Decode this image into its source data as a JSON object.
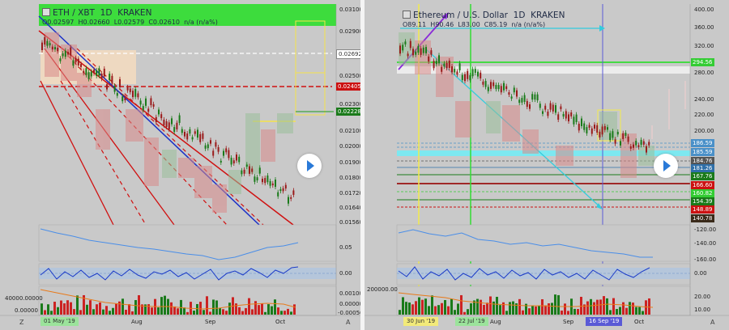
{
  "left": {
    "symbol": "ETH / XBT",
    "interval": "1D",
    "exchange": "KRAKEN",
    "ohlc": {
      "o": "O0.02597",
      "h": "H0.02660",
      "l": "L0.02579",
      "c": "C0.02610",
      "chg": "n/a (n/a%)"
    },
    "price_ticks": [
      "0.03100",
      "0.02900",
      "0.02500",
      "0.02300",
      "0.02100",
      "0.02000",
      "0.01900",
      "0.01800",
      "0.01720",
      "0.01640",
      "0.01560"
    ],
    "price_labels": [
      {
        "text": "0.02692",
        "bg": "#ffffff",
        "fg": "#333333"
      },
      {
        "text": "0.02405",
        "bg": "#cc1111",
        "fg": "#ffffff"
      },
      {
        "text": "0.02228",
        "bg": "#1a7a1a",
        "fg": "#ffffff"
      }
    ],
    "osc1_ticks": [
      "0.05"
    ],
    "osc2_ticks": [
      "0.00"
    ],
    "vol_ticks": [
      "40000.00000",
      "0.00000"
    ],
    "vol_right_ticks": [
      "0.00100",
      "0.00000",
      "-0.00050"
    ],
    "x_labels": [
      "Aug",
      "Sep",
      "Oct"
    ],
    "x_badge": "01 May '19",
    "corner_left": "Z",
    "corner_right": "A"
  },
  "right": {
    "symbol": "Ethereum / U.S. Dollar",
    "interval": "1D",
    "exchange": "KRAKEN",
    "ohlc": {
      "o": "O89.11",
      "h": "H90.46",
      "l": "L83.00",
      "c": "C85.19",
      "chg": "n/a (n/a%)"
    },
    "price_ticks": [
      "400.00",
      "360.00",
      "320.00",
      "280.00",
      "240.00",
      "220.00",
      "200.00",
      "140.00"
    ],
    "price_labels": [
      {
        "text": "294.56",
        "bg": "#33cc33",
        "fg": "#ffffff"
      },
      {
        "text": "186.59",
        "bg": "#4a90c8",
        "fg": "#ffffff"
      },
      {
        "text": "185.59",
        "bg": "#4a90c8",
        "fg": "#ffffff"
      },
      {
        "text": "184.76",
        "bg": "#555555",
        "fg": "#ffffff"
      },
      {
        "text": "181.26",
        "bg": "#2f6fa8",
        "fg": "#ffffff"
      },
      {
        "text": "167.76",
        "bg": "#1a7a1a",
        "fg": "#ffffff"
      },
      {
        "text": "166.60",
        "bg": "#cc1111",
        "fg": "#ffffff"
      },
      {
        "text": "160.82",
        "bg": "#33cc33",
        "fg": "#ffffff"
      },
      {
        "text": "154.39",
        "bg": "#1a7a1a",
        "fg": "#ffffff"
      },
      {
        "text": "148.89",
        "bg": "#cc1111",
        "fg": "#ffffff"
      },
      {
        "text": "140.78",
        "bg": "#3a2a1a",
        "fg": "#ffffff"
      }
    ],
    "osc1_ticks": [
      "-120.00",
      "-140.00",
      "-160.00"
    ],
    "osc2_ticks": [
      "0.00"
    ],
    "vol_ticks": [
      "200000.00"
    ],
    "vol_right_ticks": [
      "20.00",
      "10.00"
    ],
    "x_labels": [
      "Aug",
      "Sep",
      "Oct"
    ],
    "x_badges": [
      {
        "text": "30 Jun '19",
        "bg": "#f2ea7a",
        "fg": "#333333"
      },
      {
        "text": "22 Jul '19",
        "bg": "#9be39b",
        "fg": "#333333"
      },
      {
        "text": "16 Sep '19",
        "bg": "#5a5ad6",
        "fg": "#ffffff"
      }
    ],
    "corner_right": "A"
  }
}
